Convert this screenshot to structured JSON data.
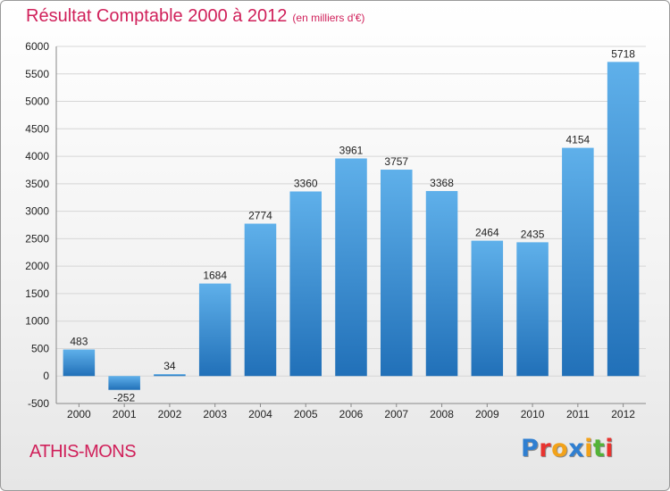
{
  "header": {
    "title": "Résultat Comptable 2000 à 2012",
    "subtitle": "(en milliers d'€)"
  },
  "footer": {
    "place": "ATHIS-MONS",
    "logo_letters": [
      "P",
      "r",
      "o",
      "x",
      "i",
      "t",
      "i"
    ],
    "logo_colors": [
      "#2f7fd1",
      "#e8332f",
      "#f2a21a",
      "#2f7fd1",
      "#f2a21a",
      "#53b337",
      "#e8332f"
    ]
  },
  "colors": {
    "title": "#d0205a",
    "bar_light": "#5fb0ea",
    "bar_dark": "#2170b8",
    "grid": "#d6d6d6",
    "axis": "#888888",
    "text": "#222222"
  },
  "chart_data": {
    "type": "bar",
    "title": "Résultat Comptable 2000 à 2012",
    "subtitle": "(en milliers d'€)",
    "xlabel": "",
    "ylabel": "",
    "categories": [
      "2000",
      "2001",
      "2002",
      "2003",
      "2004",
      "2005",
      "2006",
      "2007",
      "2008",
      "2009",
      "2010",
      "2011",
      "2012"
    ],
    "values": [
      483,
      -252,
      34,
      1684,
      2774,
      3360,
      3961,
      3757,
      3368,
      2464,
      2435,
      4154,
      5718
    ],
    "ylim": [
      -500,
      6000
    ],
    "yticks": [
      -500,
      0,
      500,
      1000,
      1500,
      2000,
      2500,
      3000,
      3500,
      4000,
      4500,
      5000,
      5500,
      6000
    ],
    "grid": true,
    "data_labels": true
  }
}
